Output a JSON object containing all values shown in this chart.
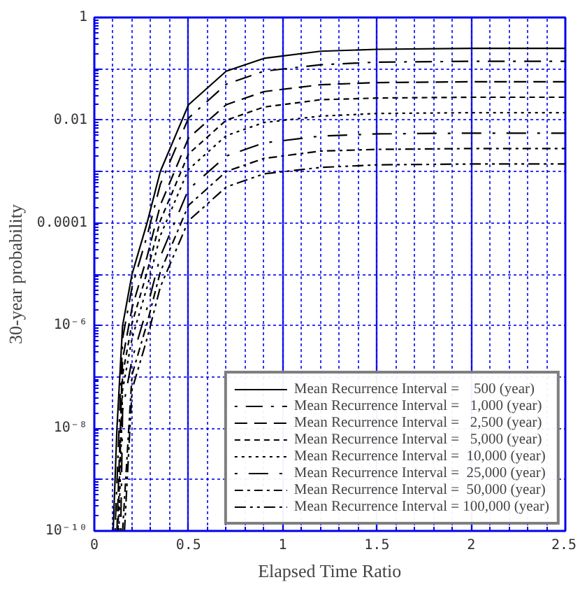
{
  "chart_data": {
    "type": "line",
    "xlabel": "Elapsed Time Ratio",
    "ylabel": "30-year probability",
    "xlim": [
      0,
      2.5
    ],
    "xticks": [
      0,
      0.5,
      1,
      1.5,
      2,
      2.5
    ],
    "ylim": [
      1e-10,
      1
    ],
    "log": "y",
    "yticks": [
      1,
      {
        "value": 0.1,
        "label": null
      },
      0.01,
      {
        "value": 0.001,
        "label": null
      },
      0.0001,
      {
        "value": 1e-05,
        "label": null
      },
      {
        "value": 1e-06,
        "label": "10⁻⁶"
      },
      {
        "value": 1e-07,
        "label": null
      },
      {
        "value": 1e-08,
        "label": "10⁻⁸"
      },
      {
        "value": 1e-09,
        "label": null
      },
      {
        "value": 1e-10,
        "label": "10⁻¹⁰"
      }
    ],
    "grid": true,
    "legend": "bottom right",
    "marker": "none",
    "series": [
      {
        "name": "Mean Recurrence Interval =    500 (year)",
        "color": "#000000",
        "line_style": "solid",
        "x": [
          0.1,
          0.12,
          0.15,
          0.2,
          0.28,
          0.35,
          0.5,
          0.7,
          0.9,
          1.2,
          1.5,
          2.0,
          2.5
        ],
        "values": [
          1e-10,
          1e-08,
          1e-06,
          1e-05,
          0.0001,
          0.001,
          0.02,
          0.09,
          0.16,
          0.22,
          0.24,
          0.25,
          0.25
        ]
      },
      {
        "name": "Mean Recurrence Interval =   1,000 (year)",
        "color": "#000000",
        "line_style": "longdashdot",
        "x": [
          0.11,
          0.15,
          0.2,
          0.28,
          0.35,
          0.5,
          0.7,
          0.9,
          1.2,
          1.5,
          2.0,
          2.5
        ],
        "values": [
          1e-10,
          5.6e-07,
          5.6e-06,
          5.6e-05,
          0.00056,
          0.011,
          0.05,
          0.09,
          0.12,
          0.135,
          0.14,
          0.14
        ]
      },
      {
        "name": "Mean Recurrence Interval =   2,500 (year)",
        "color": "#000000",
        "line_style": "dashed",
        "x": [
          0.12,
          0.15,
          0.2,
          0.28,
          0.35,
          0.5,
          0.7,
          0.9,
          1.2,
          1.5,
          2.0,
          2.5
        ],
        "values": [
          1e-10,
          2.2e-07,
          2.2e-06,
          2.2e-05,
          0.00022,
          0.0045,
          0.02,
          0.036,
          0.049,
          0.054,
          0.056,
          0.056
        ]
      },
      {
        "name": "Mean Recurrence Interval =   5,000 (year)",
        "color": "#000000",
        "line_style": "shortdashed",
        "x": [
          0.125,
          0.15,
          0.2,
          0.28,
          0.35,
          0.5,
          0.7,
          0.9,
          1.2,
          1.5,
          2.0,
          2.5
        ],
        "values": [
          1e-10,
          1.1e-07,
          1.1e-06,
          1.1e-05,
          0.00011,
          0.0022,
          0.01,
          0.018,
          0.025,
          0.027,
          0.028,
          0.028
        ]
      },
      {
        "name": "Mean Recurrence Interval =  10,000 (year)",
        "color": "#000000",
        "line_style": "dotted",
        "x": [
          0.13,
          0.15,
          0.2,
          0.28,
          0.35,
          0.5,
          0.7,
          0.9,
          1.2,
          1.5,
          2.0,
          2.5
        ],
        "values": [
          1e-10,
          5.6e-08,
          5.6e-07,
          5.6e-06,
          5.6e-05,
          0.0011,
          0.005,
          0.009,
          0.012,
          0.0135,
          0.014,
          0.014
        ]
      },
      {
        "name": "Mean Recurrence Interval =  25,000 (year)",
        "color": "#000000",
        "line_style": "dotlongdash",
        "x": [
          0.14,
          0.15,
          0.2,
          0.28,
          0.35,
          0.5,
          0.7,
          0.9,
          1.2,
          1.5,
          2.0,
          2.5
        ],
        "values": [
          1e-10,
          2.2e-08,
          2.2e-07,
          2.2e-06,
          2.2e-05,
          0.00045,
          0.002,
          0.0036,
          0.0049,
          0.0054,
          0.0056,
          0.0056
        ]
      },
      {
        "name": "Mean Recurrence Interval =  50,000 (year)",
        "color": "#000000",
        "line_style": "dashdot",
        "x": [
          0.15,
          0.2,
          0.28,
          0.35,
          0.5,
          0.7,
          0.9,
          1.2,
          1.5,
          2.0,
          2.5
        ],
        "values": [
          1e-10,
          1.1e-07,
          1.1e-06,
          1.1e-05,
          0.00022,
          0.001,
          0.0018,
          0.0025,
          0.0027,
          0.0028,
          0.0028
        ]
      },
      {
        "name": "Mean Recurrence Interval = 100,000 (year)",
        "color": "#000000",
        "line_style": "dashdotdot",
        "x": [
          0.16,
          0.2,
          0.28,
          0.35,
          0.5,
          0.7,
          0.9,
          1.2,
          1.5,
          2.0,
          2.5
        ],
        "values": [
          1e-10,
          5.6e-08,
          5.6e-07,
          5.6e-06,
          0.00011,
          0.0005,
          0.0009,
          0.0012,
          0.00135,
          0.0014,
          0.0014
        ]
      }
    ]
  }
}
